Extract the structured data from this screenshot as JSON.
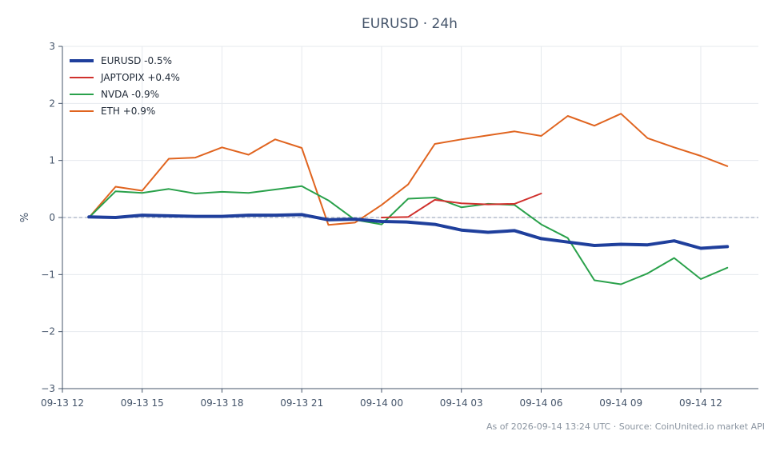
{
  "chart_data": {
    "type": "line",
    "title": "EURUSD · 24h",
    "xlabel": "",
    "ylabel": "%",
    "ylim": [
      -3,
      3
    ],
    "yticks": [
      {
        "v": 3,
        "label": "3"
      },
      {
        "v": 2,
        "label": "2"
      },
      {
        "v": 1,
        "label": "1"
      },
      {
        "v": 0,
        "label": "0"
      },
      {
        "v": -1,
        "label": "−1"
      },
      {
        "v": -2,
        "label": "−2"
      },
      {
        "v": -3,
        "label": "−3"
      }
    ],
    "x_range": [
      "2026-09-13 12:00",
      "2026-09-14 14:10"
    ],
    "xticks": [
      "09-13 12",
      "09-13 15",
      "09-13 18",
      "09-13 21",
      "09-14 00",
      "09-14 03",
      "09-14 06",
      "09-14 09",
      "09-14 12"
    ],
    "grid": true,
    "baseline": 0,
    "legend_position": "top-left",
    "series": [
      {
        "name": "EURUSD -0.5%",
        "color": "#1f3f9c",
        "x": [
          "2026-09-13 13:00",
          "2026-09-13 14:00",
          "2026-09-13 15:00",
          "2026-09-13 16:00",
          "2026-09-13 17:00",
          "2026-09-13 18:00",
          "2026-09-13 19:00",
          "2026-09-13 20:00",
          "2026-09-13 21:00",
          "2026-09-13 22:00",
          "2026-09-13 23:00",
          "2026-09-14 00:00",
          "2026-09-14 01:00",
          "2026-09-14 02:00",
          "2026-09-14 03:00",
          "2026-09-14 04:00",
          "2026-09-14 05:00",
          "2026-09-14 06:00",
          "2026-09-14 07:00",
          "2026-09-14 08:00",
          "2026-09-14 09:00",
          "2026-09-14 10:00",
          "2026-09-14 11:00",
          "2026-09-14 12:00",
          "2026-09-14 13:00"
        ],
        "y": [
          0.01,
          0.0,
          0.04,
          0.03,
          0.02,
          0.02,
          0.04,
          0.04,
          0.05,
          -0.04,
          -0.03,
          -0.07,
          -0.08,
          -0.12,
          -0.22,
          -0.26,
          -0.23,
          -0.37,
          -0.43,
          -0.49,
          -0.47,
          -0.48,
          -0.41,
          -0.54,
          -0.51
        ]
      },
      {
        "name": "JAPTOPIX +0.4%",
        "color": "#d0312d",
        "x": [
          "2026-09-14 00:00",
          "2026-09-14 01:00",
          "2026-09-14 02:00",
          "2026-09-14 03:00",
          "2026-09-14 04:00",
          "2026-09-14 05:00",
          "2026-09-14 06:00"
        ],
        "y": [
          0.0,
          0.01,
          0.31,
          0.25,
          0.23,
          0.24,
          0.42
        ]
      },
      {
        "name": "NVDA -0.9%",
        "color": "#2aa14b",
        "x": [
          "2026-09-13 13:00",
          "2026-09-13 14:00",
          "2026-09-13 15:00",
          "2026-09-13 16:00",
          "2026-09-13 17:00",
          "2026-09-13 18:00",
          "2026-09-13 19:00",
          "2026-09-13 20:00",
          "2026-09-13 21:00",
          "2026-09-13 22:00",
          "2026-09-13 23:00",
          "2026-09-14 00:00",
          "2026-09-14 01:00",
          "2026-09-14 02:00",
          "2026-09-14 03:00",
          "2026-09-14 04:00",
          "2026-09-14 05:00",
          "2026-09-14 06:00",
          "2026-09-14 07:00",
          "2026-09-14 08:00",
          "2026-09-14 09:00",
          "2026-09-14 10:00",
          "2026-09-14 11:00",
          "2026-09-14 12:00",
          "2026-09-14 13:00"
        ],
        "y": [
          0.0,
          0.46,
          0.43,
          0.5,
          0.42,
          0.45,
          0.43,
          0.49,
          0.55,
          0.3,
          -0.04,
          -0.12,
          0.33,
          0.35,
          0.18,
          0.24,
          0.22,
          -0.12,
          -0.36,
          -1.1,
          -1.17,
          -0.98,
          -0.71,
          -1.08,
          -0.88
        ]
      },
      {
        "name": "ETH +0.9%",
        "color": "#e0641f",
        "x": [
          "2026-09-13 13:00",
          "2026-09-13 14:00",
          "2026-09-13 15:00",
          "2026-09-13 16:00",
          "2026-09-13 17:00",
          "2026-09-13 18:00",
          "2026-09-13 19:00",
          "2026-09-13 20:00",
          "2026-09-13 21:00",
          "2026-09-13 22:00",
          "2026-09-13 23:00",
          "2026-09-14 00:00",
          "2026-09-14 01:00",
          "2026-09-14 02:00",
          "2026-09-14 03:00",
          "2026-09-14 04:00",
          "2026-09-14 05:00",
          "2026-09-14 06:00",
          "2026-09-14 07:00",
          "2026-09-14 08:00",
          "2026-09-14 09:00",
          "2026-09-14 10:00",
          "2026-09-14 11:00",
          "2026-09-14 12:00",
          "2026-09-14 13:00"
        ],
        "y": [
          0.0,
          0.54,
          0.47,
          1.03,
          1.05,
          1.23,
          1.1,
          1.37,
          1.22,
          -0.13,
          -0.09,
          0.22,
          0.58,
          1.29,
          1.37,
          1.44,
          1.51,
          1.43,
          1.78,
          1.61,
          1.82,
          1.39,
          1.23,
          1.08,
          0.9
        ]
      }
    ]
  },
  "footer": "As of 2026-09-14 13:24 UTC · Source: CoinUnited.io market API"
}
